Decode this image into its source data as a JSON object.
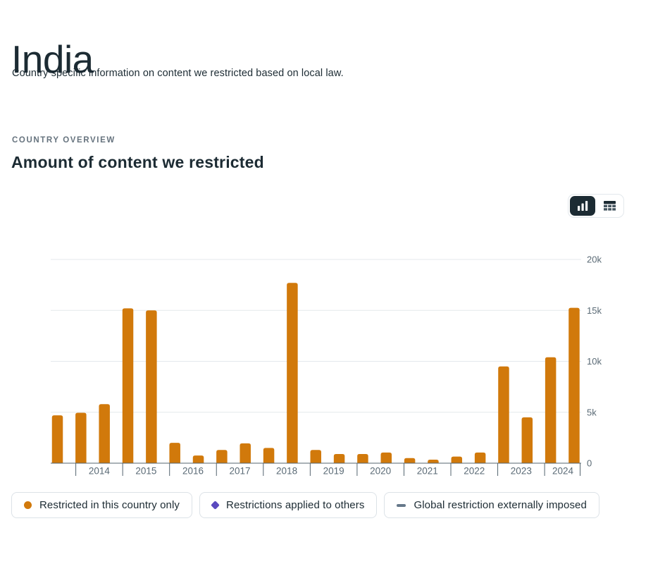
{
  "page": {
    "title": "India",
    "subtitle": "Country specific information on content we restricted based on local law."
  },
  "overview": {
    "eyebrow": "COUNTRY OVERVIEW",
    "heading": "Amount of content we restricted"
  },
  "view_toggle": {
    "options": [
      {
        "name": "chart-view",
        "icon": "bar-chart-icon",
        "selected": true
      },
      {
        "name": "table-view",
        "icon": "table-icon",
        "selected": false
      }
    ]
  },
  "colors": {
    "bar_orange": "#d1790b",
    "purple": "#5a4abf",
    "gray_dash": "#66788a",
    "text_dark": "#1c2b33",
    "axis_text": "#5a6a75",
    "gridline": "#e4e8ec",
    "axis_line": "#54646f"
  },
  "chart_data": {
    "type": "bar",
    "title": "Amount of content we restricted",
    "ylim": [
      0,
      20000
    ],
    "y_ticks": [
      {
        "label": "0",
        "value": 0
      },
      {
        "label": "5k",
        "value": 5000
      },
      {
        "label": "10k",
        "value": 10000
      },
      {
        "label": "15k",
        "value": 15000
      },
      {
        "label": "20k",
        "value": 20000
      }
    ],
    "x_tick_labels": [
      "2014",
      "2015",
      "2016",
      "2017",
      "2018",
      "2019",
      "2020",
      "2021",
      "2022",
      "2023",
      "2024"
    ],
    "grid": "horizontal",
    "y_axis_side": "right",
    "legend_position": "bottom",
    "series": [
      {
        "name": "Restricted in this country only",
        "color": "#d1790b",
        "points": [
          {
            "period": "2013 H2",
            "value": 4700
          },
          {
            "period": "2014 H1",
            "value": 4950
          },
          {
            "period": "2014 H2",
            "value": 5800
          },
          {
            "period": "2015 H1",
            "value": 15200
          },
          {
            "period": "2015 H2",
            "value": 15000
          },
          {
            "period": "2016 H1",
            "value": 2000
          },
          {
            "period": "2016 H2",
            "value": 750
          },
          {
            "period": "2017 H1",
            "value": 1300
          },
          {
            "period": "2017 H2",
            "value": 1950
          },
          {
            "period": "2018 H1",
            "value": 1500
          },
          {
            "period": "2018 H2",
            "value": 17700
          },
          {
            "period": "2019 H1",
            "value": 1300
          },
          {
            "period": "2019 H2",
            "value": 900
          },
          {
            "period": "2020 H1",
            "value": 900
          },
          {
            "period": "2020 H2",
            "value": 1050
          },
          {
            "period": "2021 H1",
            "value": 500
          },
          {
            "period": "2021 H2",
            "value": 350
          },
          {
            "period": "2022 H1",
            "value": 650
          },
          {
            "period": "2022 H2",
            "value": 1050
          },
          {
            "period": "2023 H1",
            "value": 9500
          },
          {
            "period": "2023 H2",
            "value": 4500
          },
          {
            "period": "2024 H1",
            "value": 10400
          },
          {
            "period": "2024 H2",
            "value": 15250
          }
        ]
      }
    ]
  },
  "legend": {
    "items": [
      {
        "label": "Restricted in this country only",
        "marker": "circle",
        "color": "#d1790b"
      },
      {
        "label": "Restrictions applied to others",
        "marker": "diamond",
        "color": "#5a4abf"
      },
      {
        "label": "Global restriction externally imposed",
        "marker": "dash",
        "color": "#66788a"
      }
    ]
  }
}
